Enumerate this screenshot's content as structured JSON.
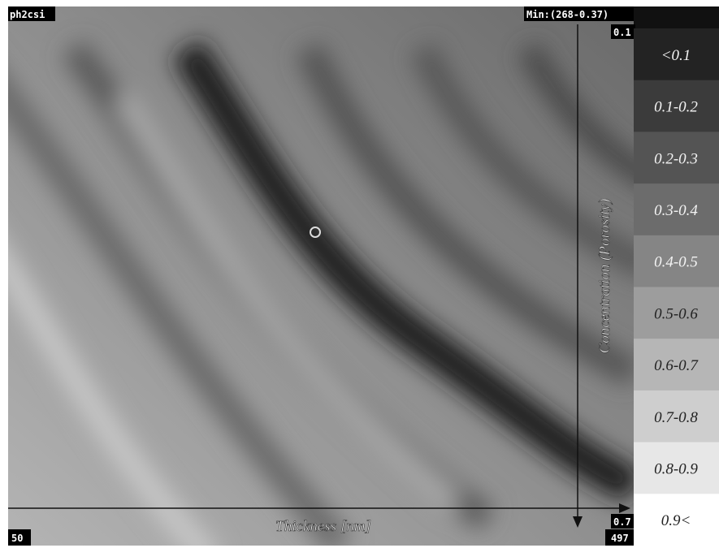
{
  "header": {
    "file": "ph2csi",
    "min": "Min:(268-0.37)"
  },
  "axes": {
    "x_label": "Thickness [nm]",
    "y_label": "Concentration (Porosity)",
    "x_start": "50",
    "x_end": "497",
    "y_start": "0.1",
    "y_end": "0.7"
  },
  "legend": [
    "<0.1",
    "0.1-0.2",
    "0.2-0.3",
    "0.3-0.4",
    "0.4-0.5",
    "0.5-0.6",
    "0.6-0.7",
    "0.7-0.8",
    "0.8-0.9",
    "0.9<"
  ]
}
